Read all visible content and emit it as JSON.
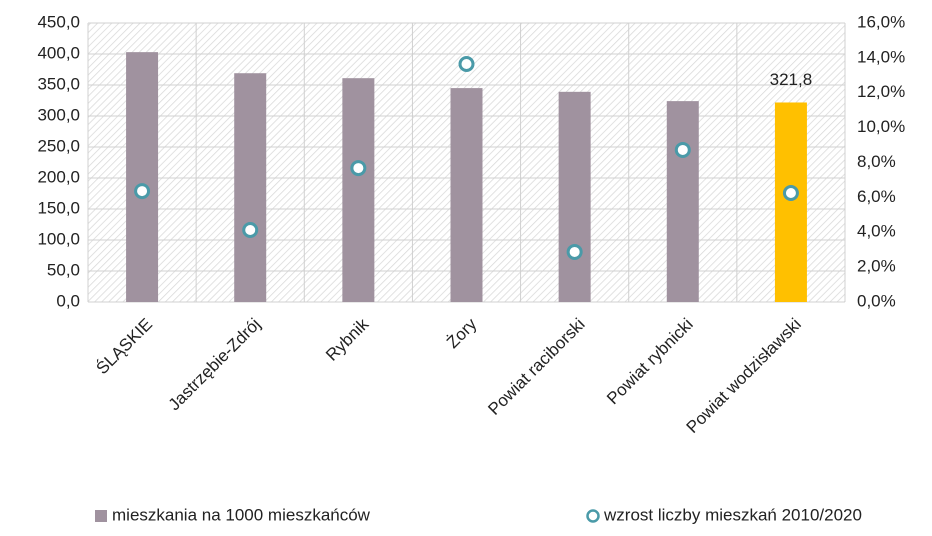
{
  "chart_data": {
    "type": "bar",
    "categories": [
      "ŚLĄSKIE",
      "Jastrzębie-Zdrój",
      "Rybnik",
      "Żory",
      "Powiat raciborski",
      "Powiat rybnicki",
      "Powiat wodzisławski"
    ],
    "series": [
      {
        "name": "mieszkania na 1000 mieszkańców",
        "type": "bar",
        "color": "#a0929f",
        "colors": [
          "#a0929f",
          "#a0929f",
          "#a0929f",
          "#a0929f",
          "#a0929f",
          "#a0929f",
          "#ffc000"
        ],
        "values": [
          403,
          369,
          361,
          345,
          339,
          324,
          321.8
        ],
        "value_labels": [
          null,
          null,
          null,
          null,
          null,
          null,
          "321,8"
        ]
      },
      {
        "name": "wzrost liczby mieszkań 2010/2020",
        "type": "scatter",
        "axis": "y2",
        "color": "#4a9aa8",
        "values": [
          6.36,
          4.13,
          7.68,
          13.65,
          2.87,
          8.72,
          6.25
        ]
      }
    ],
    "ylim": [
      0,
      450
    ],
    "yticks": [
      {
        "value": 0,
        "label": "0,0"
      },
      {
        "value": 50,
        "label": "50,0"
      },
      {
        "value": 100,
        "label": "100,0"
      },
      {
        "value": 150,
        "label": "150,0"
      },
      {
        "value": 200,
        "label": "200,0"
      },
      {
        "value": 250,
        "label": "250,0"
      },
      {
        "value": 300,
        "label": "300,0"
      },
      {
        "value": 350,
        "label": "350,0"
      },
      {
        "value": 400,
        "label": "400,0"
      },
      {
        "value": 450,
        "label": "450,0"
      }
    ],
    "y2lim": [
      0,
      16
    ],
    "y2ticks": [
      {
        "value": 0,
        "label": "0,0%"
      },
      {
        "value": 2,
        "label": "2,0%"
      },
      {
        "value": 4,
        "label": "4,0%"
      },
      {
        "value": 6,
        "label": "6,0%"
      },
      {
        "value": 8,
        "label": "8,0%"
      },
      {
        "value": 10,
        "label": "10,0%"
      },
      {
        "value": 12,
        "label": "12,0%"
      },
      {
        "value": 14,
        "label": "14,0%"
      },
      {
        "value": 16,
        "label": "16,0%"
      }
    ],
    "grid": true,
    "legend": "bottom"
  }
}
